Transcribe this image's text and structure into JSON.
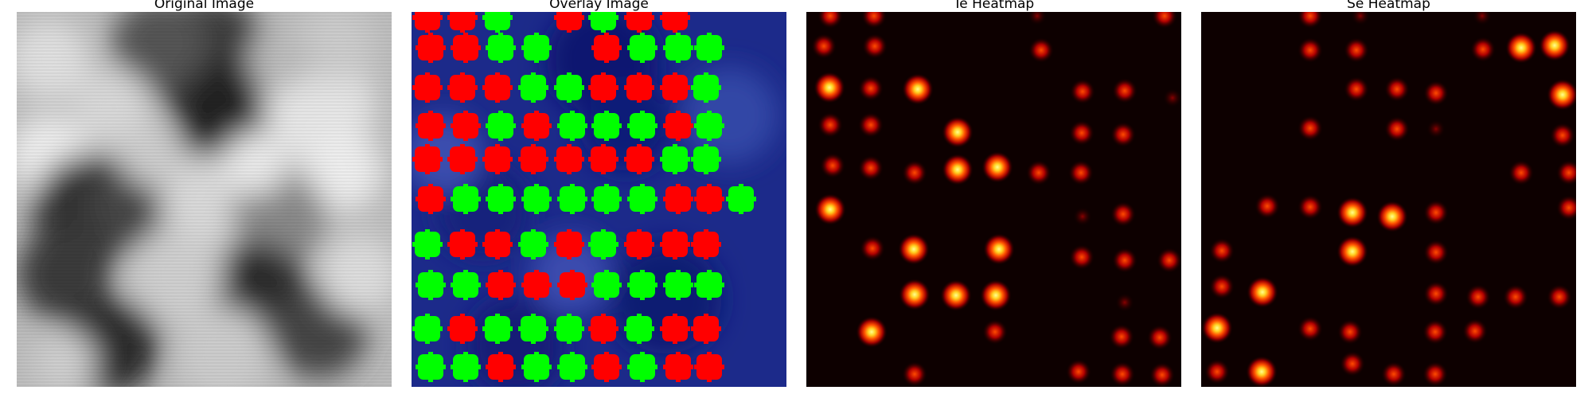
{
  "panels": [
    {
      "title": "Original Image",
      "kind": "grayscale-image"
    },
    {
      "title": "Overlay Image",
      "kind": "overlay"
    },
    {
      "title": "Te Heatmap",
      "kind": "heatmap"
    },
    {
      "title": "Se Heatmap",
      "kind": "heatmap"
    }
  ],
  "colors": {
    "overlay_background": "#1c2a8a",
    "te_marker": "#ff0000",
    "se_marker": "#00ff00",
    "heatmap_background": "#0d0000",
    "heatmap_peak": "#ffff80"
  }
}
